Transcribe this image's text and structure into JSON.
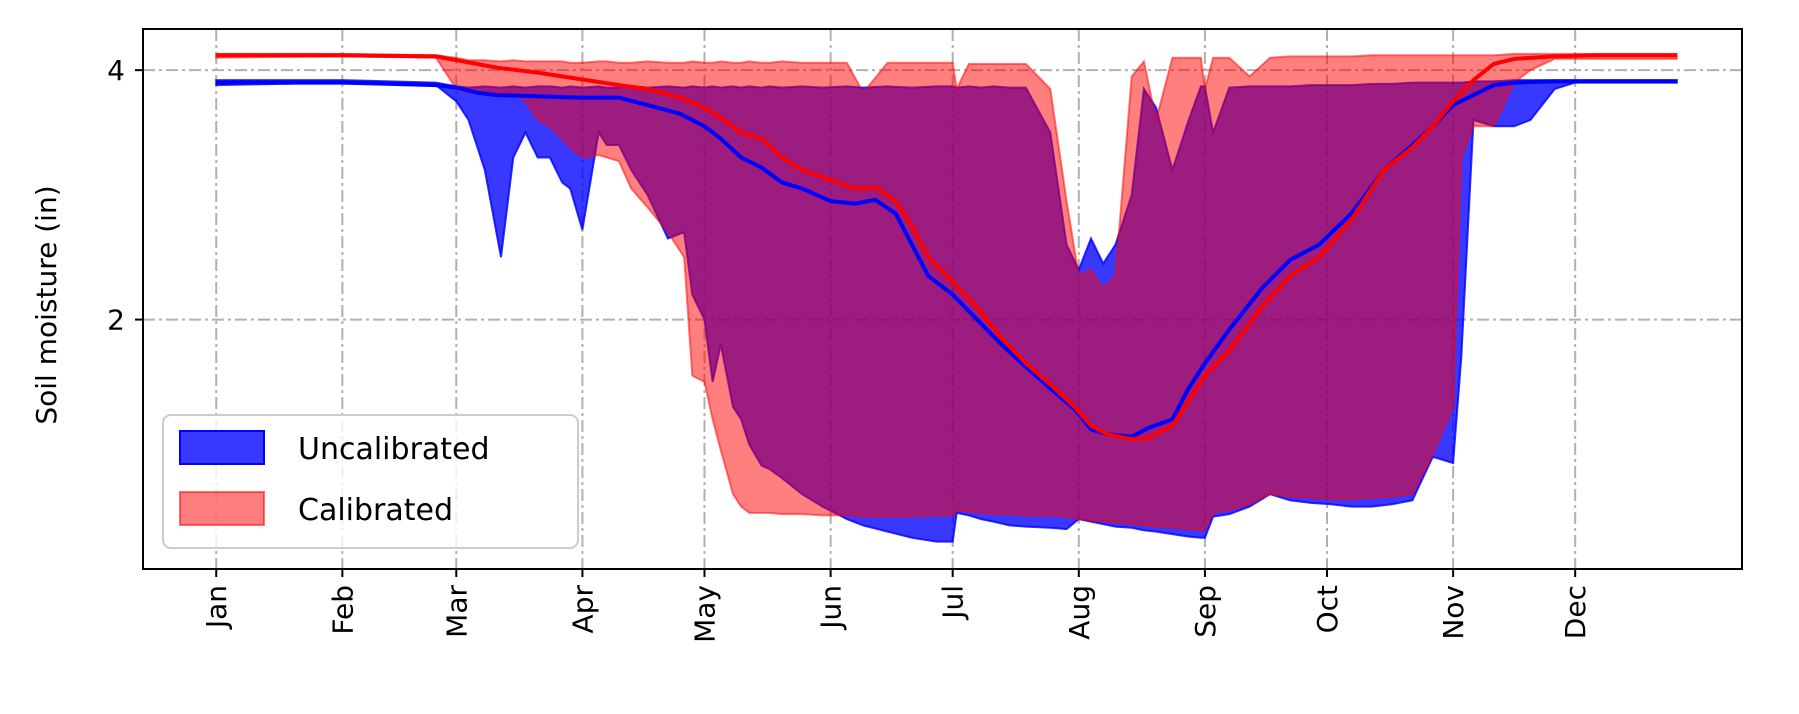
{
  "chart_data": {
    "type": "area",
    "title": "",
    "xlabel": "",
    "ylabel": "Soil moisture (in)",
    "x_axis": {
      "unit": "day of year",
      "ticks": [
        {
          "label": "Jan",
          "value": 1
        },
        {
          "label": "Feb",
          "value": 32
        },
        {
          "label": "Mar",
          "value": 60
        },
        {
          "label": "Apr",
          "value": 91
        },
        {
          "label": "May",
          "value": 121
        },
        {
          "label": "Jun",
          "value": 152
        },
        {
          "label": "Jul",
          "value": 182
        },
        {
          "label": "Aug",
          "value": 213
        },
        {
          "label": "Sep",
          "value": 244
        },
        {
          "label": "Oct",
          "value": 274
        },
        {
          "label": "Nov",
          "value": 305
        },
        {
          "label": "Dec",
          "value": 335
        }
      ],
      "xlim": [
        -17,
        376
      ]
    },
    "y_axis": {
      "ticks": [
        {
          "label": "2",
          "value": 2
        },
        {
          "label": "4",
          "value": 4
        }
      ],
      "ylim": [
        0.0,
        4.33
      ]
    },
    "grid": true,
    "legend_placement": "lower-left",
    "series": [
      {
        "name": "Uncalibrated",
        "kind": "band",
        "color": "#0000ff",
        "x": [
          1,
          32,
          55,
          60,
          63,
          67,
          71,
          74,
          77,
          80,
          83,
          86,
          88,
          91,
          95,
          97,
          100,
          103,
          107,
          112,
          116,
          118,
          121,
          123,
          125,
          128,
          130,
          132,
          135,
          137,
          140,
          145,
          150,
          156,
          160,
          166,
          172,
          178,
          182,
          183,
          186,
          189,
          192,
          196,
          200,
          206,
          210,
          213,
          216,
          219,
          222,
          226,
          229,
          232,
          236,
          240,
          243,
          244,
          246,
          250,
          255,
          260,
          265,
          270,
          275,
          280,
          285,
          290,
          295,
          300,
          305,
          307,
          310,
          315,
          320,
          324,
          330,
          335,
          340,
          345,
          350,
          355,
          360
        ],
        "upper": [
          3.92,
          3.92,
          3.9,
          3.87,
          3.86,
          3.87,
          3.86,
          3.87,
          3.86,
          3.87,
          3.87,
          3.86,
          3.87,
          3.86,
          3.87,
          3.86,
          3.86,
          3.87,
          3.86,
          3.87,
          3.86,
          3.87,
          3.86,
          3.87,
          3.86,
          3.87,
          3.86,
          3.87,
          3.86,
          3.87,
          3.86,
          3.87,
          3.86,
          3.87,
          3.86,
          3.87,
          3.86,
          3.87,
          3.87,
          3.86,
          3.87,
          3.86,
          3.87,
          3.86,
          3.86,
          3.5,
          2.6,
          2.4,
          2.65,
          2.45,
          2.6,
          3.0,
          3.85,
          3.7,
          3.2,
          3.6,
          3.87,
          3.87,
          3.5,
          3.86,
          3.87,
          3.87,
          3.87,
          3.88,
          3.88,
          3.88,
          3.89,
          3.89,
          3.9,
          3.9,
          3.9,
          3.9,
          3.91,
          3.91,
          3.92,
          3.92,
          3.92,
          3.92,
          3.92,
          3.92,
          3.92,
          3.92,
          3.92
        ],
        "lower": [
          3.88,
          3.9,
          3.88,
          3.75,
          3.6,
          3.2,
          2.5,
          3.3,
          3.5,
          3.3,
          3.3,
          3.1,
          3.05,
          2.72,
          3.5,
          3.4,
          3.4,
          3.2,
          3.0,
          2.65,
          2.7,
          2.2,
          2.0,
          1.5,
          1.8,
          1.3,
          1.2,
          1.0,
          0.83,
          0.8,
          0.73,
          0.6,
          0.5,
          0.4,
          0.35,
          0.3,
          0.25,
          0.22,
          0.22,
          0.45,
          0.43,
          0.4,
          0.38,
          0.35,
          0.34,
          0.33,
          0.32,
          0.4,
          0.38,
          0.36,
          0.34,
          0.33,
          0.31,
          0.3,
          0.28,
          0.26,
          0.25,
          0.25,
          0.42,
          0.44,
          0.5,
          0.6,
          0.55,
          0.53,
          0.52,
          0.5,
          0.5,
          0.52,
          0.55,
          0.9,
          0.85,
          1.7,
          3.6,
          3.55,
          3.55,
          3.6,
          3.85,
          3.9,
          3.9,
          3.9,
          3.9,
          3.9,
          3.9
        ]
      },
      {
        "name": "Calibrated",
        "kind": "band",
        "color": "#ff0000",
        "x": [
          1,
          32,
          55,
          60,
          63,
          67,
          71,
          74,
          77,
          80,
          83,
          86,
          88,
          91,
          95,
          97,
          100,
          103,
          107,
          112,
          116,
          118,
          121,
          123,
          125,
          128,
          130,
          132,
          135,
          137,
          140,
          145,
          150,
          156,
          160,
          166,
          172,
          178,
          182,
          183,
          186,
          189,
          192,
          196,
          200,
          206,
          210,
          213,
          216,
          219,
          222,
          226,
          229,
          232,
          236,
          240,
          243,
          244,
          246,
          250,
          255,
          260,
          265,
          270,
          275,
          280,
          285,
          290,
          295,
          300,
          305,
          307,
          310,
          315,
          320,
          324,
          330,
          335,
          340,
          345,
          350,
          355,
          360
        ],
        "upper": [
          4.13,
          4.13,
          4.12,
          4.1,
          4.08,
          4.08,
          4.07,
          4.08,
          4.07,
          4.07,
          4.07,
          4.07,
          4.06,
          4.06,
          4.07,
          4.07,
          4.06,
          4.06,
          4.07,
          4.06,
          4.06,
          4.07,
          4.06,
          4.06,
          4.07,
          4.06,
          4.06,
          4.07,
          4.06,
          4.06,
          4.07,
          4.06,
          4.06,
          4.06,
          3.82,
          4.06,
          4.06,
          4.06,
          4.06,
          3.85,
          4.05,
          4.05,
          4.05,
          4.05,
          4.05,
          3.85,
          2.95,
          2.35,
          2.4,
          2.25,
          2.35,
          3.95,
          4.07,
          3.6,
          4.1,
          4.1,
          4.1,
          3.85,
          4.1,
          4.1,
          3.95,
          4.1,
          4.11,
          4.11,
          4.11,
          4.11,
          4.12,
          4.12,
          4.12,
          4.12,
          4.12,
          4.12,
          4.12,
          4.12,
          4.13,
          4.13,
          4.13,
          4.13,
          4.13,
          4.13,
          4.13,
          4.13,
          4.13
        ],
        "lower": [
          4.1,
          4.11,
          4.1,
          3.85,
          3.82,
          3.82,
          3.82,
          3.82,
          3.75,
          3.6,
          3.55,
          3.45,
          3.38,
          3.3,
          3.32,
          3.3,
          3.27,
          3.05,
          2.9,
          2.7,
          2.5,
          1.55,
          1.5,
          1.2,
          0.95,
          0.6,
          0.5,
          0.45,
          0.45,
          0.45,
          0.44,
          0.44,
          0.43,
          0.43,
          0.42,
          0.42,
          0.42,
          0.43,
          0.43,
          0.47,
          0.46,
          0.45,
          0.44,
          0.44,
          0.43,
          0.43,
          0.42,
          0.4,
          0.39,
          0.38,
          0.37,
          0.36,
          0.35,
          0.34,
          0.33,
          0.32,
          0.31,
          0.31,
          0.45,
          0.47,
          0.52,
          0.6,
          0.58,
          0.57,
          0.56,
          0.56,
          0.57,
          0.58,
          0.6,
          0.92,
          1.3,
          3.3,
          3.55,
          3.55,
          3.9,
          4.0,
          4.09,
          4.09,
          4.09,
          4.09,
          4.09,
          4.09,
          4.09
        ]
      },
      {
        "name": "",
        "kind": "line",
        "color": "#0000ff",
        "x": [
          1,
          32,
          55,
          60,
          65,
          70,
          80,
          90,
          100,
          107,
          115,
          121,
          125,
          130,
          135,
          140,
          145,
          152,
          158,
          163,
          168,
          172,
          176,
          182,
          188,
          194,
          200,
          206,
          212,
          216,
          220,
          226,
          230,
          236,
          240,
          244,
          250,
          258,
          265,
          272,
          280,
          288,
          295,
          300,
          305,
          310,
          315,
          320,
          330,
          340,
          350,
          360
        ],
        "values": [
          3.9,
          3.9,
          3.88,
          3.86,
          3.82,
          3.8,
          3.79,
          3.78,
          3.78,
          3.72,
          3.65,
          3.55,
          3.45,
          3.3,
          3.22,
          3.1,
          3.05,
          2.95,
          2.93,
          2.96,
          2.85,
          2.6,
          2.35,
          2.2,
          2.0,
          1.8,
          1.62,
          1.45,
          1.28,
          1.12,
          1.08,
          1.06,
          1.13,
          1.2,
          1.45,
          1.65,
          1.92,
          2.25,
          2.48,
          2.6,
          2.85,
          3.2,
          3.4,
          3.55,
          3.72,
          3.8,
          3.88,
          3.9,
          3.91,
          3.91,
          3.91,
          3.91
        ]
      },
      {
        "name": "",
        "kind": "line",
        "color": "#ff0000",
        "x": [
          1,
          32,
          55,
          60,
          65,
          70,
          80,
          90,
          100,
          107,
          115,
          121,
          125,
          130,
          135,
          140,
          145,
          152,
          158,
          163,
          168,
          172,
          176,
          182,
          188,
          194,
          200,
          206,
          212,
          216,
          220,
          226,
          230,
          236,
          240,
          244,
          250,
          258,
          265,
          272,
          280,
          288,
          295,
          300,
          305,
          310,
          315,
          320,
          330,
          340,
          350,
          360
        ],
        "values": [
          4.12,
          4.12,
          4.11,
          4.08,
          4.05,
          4.02,
          3.98,
          3.93,
          3.88,
          3.85,
          3.78,
          3.7,
          3.62,
          3.5,
          3.45,
          3.3,
          3.2,
          3.12,
          3.05,
          3.06,
          2.95,
          2.75,
          2.5,
          2.3,
          2.1,
          1.85,
          1.65,
          1.48,
          1.3,
          1.15,
          1.08,
          1.04,
          1.05,
          1.15,
          1.35,
          1.55,
          1.75,
          2.1,
          2.35,
          2.5,
          2.8,
          3.2,
          3.38,
          3.55,
          3.75,
          3.92,
          4.05,
          4.09,
          4.11,
          4.12,
          4.12,
          4.12
        ]
      }
    ],
    "legend": [
      {
        "label": "Uncalibrated",
        "color": "#0000ff"
      },
      {
        "label": "Calibrated",
        "color": "#ff0000"
      }
    ]
  }
}
